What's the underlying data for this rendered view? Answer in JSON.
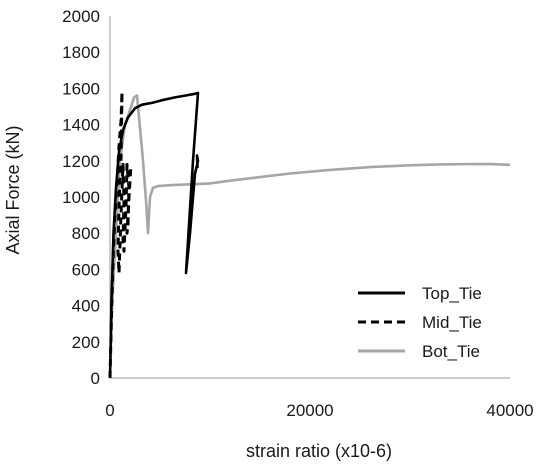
{
  "chart_data": {
    "type": "line",
    "xlabel": "strain ratio (x10-6)",
    "ylabel": "Axial Force (kN)",
    "xlim": [
      0,
      40000
    ],
    "ylim": [
      0,
      2000
    ],
    "x_ticks": [
      0,
      20000,
      40000
    ],
    "y_ticks": [
      0,
      200,
      400,
      600,
      800,
      1000,
      1200,
      1400,
      1600,
      1800,
      2000
    ],
    "grid": false,
    "legend_position": "bottom-right",
    "series": [
      {
        "name": "Top_Tie",
        "color": "#000000",
        "dash": "solid",
        "points": [
          [
            0,
            0
          ],
          [
            150,
            420
          ],
          [
            350,
            800
          ],
          [
            600,
            1050
          ],
          [
            900,
            1250
          ],
          [
            1300,
            1370
          ],
          [
            1800,
            1440
          ],
          [
            2500,
            1490
          ],
          [
            3200,
            1510
          ],
          [
            4200,
            1520
          ],
          [
            5200,
            1535
          ],
          [
            6500,
            1550
          ],
          [
            7500,
            1560
          ],
          [
            8500,
            1570
          ],
          [
            8800,
            1575
          ],
          [
            8300,
            1200
          ],
          [
            7600,
            580
          ],
          [
            8000,
            800
          ],
          [
            8500,
            1130
          ],
          [
            8800,
            1200
          ],
          [
            8700,
            1230
          ],
          [
            8750,
            1160
          ]
        ]
      },
      {
        "name": "Mid_Tie",
        "color": "#000000",
        "dash": "dashed",
        "points": [
          [
            0,
            0
          ],
          [
            150,
            350
          ],
          [
            300,
            650
          ],
          [
            500,
            900
          ],
          [
            700,
            1080
          ],
          [
            900,
            1280
          ],
          [
            1100,
            1420
          ],
          [
            1200,
            1580
          ],
          [
            1100,
            1200
          ],
          [
            900,
            950
          ],
          [
            800,
            700
          ],
          [
            900,
            580
          ],
          [
            1100,
            900
          ],
          [
            1300,
            1180
          ],
          [
            1400,
            980
          ],
          [
            1300,
            750
          ],
          [
            1400,
            700
          ],
          [
            1600,
            950
          ],
          [
            1700,
            1180
          ],
          [
            1900,
            1050
          ],
          [
            1800,
            850
          ],
          [
            1700,
            800
          ],
          [
            1900,
            1000
          ],
          [
            2100,
            1180
          ]
        ]
      },
      {
        "name": "Bot_Tie",
        "color": "#a6a6a6",
        "dash": "solid",
        "points": [
          [
            0,
            0
          ],
          [
            100,
            200
          ],
          [
            200,
            380
          ],
          [
            350,
            550
          ],
          [
            500,
            700
          ],
          [
            700,
            900
          ],
          [
            1000,
            1200
          ],
          [
            1500,
            1400
          ],
          [
            2000,
            1480
          ],
          [
            2400,
            1550
          ],
          [
            2700,
            1560
          ],
          [
            3000,
            1380
          ],
          [
            3300,
            1200
          ],
          [
            3600,
            980
          ],
          [
            3800,
            800
          ],
          [
            4000,
            1000
          ],
          [
            4300,
            1050
          ],
          [
            4800,
            1060
          ],
          [
            6000,
            1065
          ],
          [
            8000,
            1070
          ],
          [
            10000,
            1075
          ],
          [
            12000,
            1090
          ],
          [
            15000,
            1110
          ],
          [
            18000,
            1130
          ],
          [
            22000,
            1150
          ],
          [
            26000,
            1165
          ],
          [
            30000,
            1175
          ],
          [
            33000,
            1180
          ],
          [
            36000,
            1182
          ],
          [
            38000,
            1182
          ],
          [
            40000,
            1178
          ]
        ]
      }
    ]
  }
}
